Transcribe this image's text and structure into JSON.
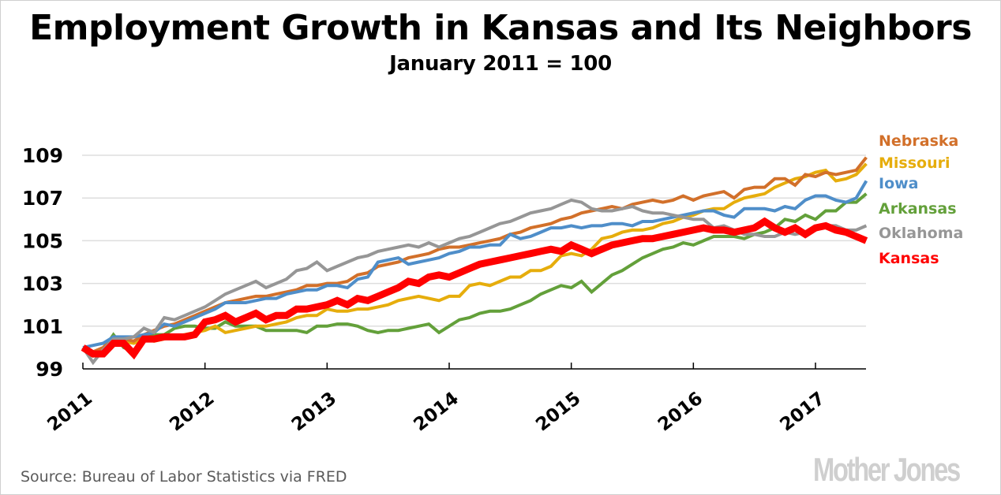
{
  "header": {
    "title": "Employment Growth in Kansas and Its Neighbors",
    "subtitle": "January 2011 = 100"
  },
  "footer": {
    "source": "Source: Bureau of Labor Statistics via FRED",
    "brand": "Mother Jones"
  },
  "chart_data": {
    "type": "line",
    "title": "Employment Growth in Kansas and Its Neighbors",
    "subtitle": "January 2011 = 100",
    "xlabel": "",
    "ylabel": "",
    "x_start": "2011-01",
    "x_frequency": "monthly",
    "x_ticks": [
      "2011",
      "2012",
      "2013",
      "2014",
      "2015",
      "2016",
      "2017"
    ],
    "y_ticks": [
      "99",
      "101",
      "103",
      "105",
      "107",
      "109"
    ],
    "ylim": [
      99,
      109.6
    ],
    "xlim_months": [
      0,
      77
    ],
    "grid": "horizontal",
    "legend": "right, labels at line ends",
    "series": [
      {
        "name": "Nebraska",
        "color": "#d2702a",
        "values": [
          100.0,
          99.8,
          100.0,
          100.5,
          100.4,
          100.3,
          100.6,
          100.8,
          101.0,
          101.1,
          101.3,
          101.5,
          101.7,
          101.9,
          102.1,
          102.2,
          102.3,
          102.4,
          102.4,
          102.5,
          102.6,
          102.7,
          102.9,
          102.9,
          103.0,
          103.0,
          103.1,
          103.4,
          103.5,
          103.8,
          103.9,
          104.0,
          104.2,
          104.3,
          104.4,
          104.6,
          104.7,
          104.7,
          104.8,
          104.9,
          105.0,
          105.1,
          105.3,
          105.4,
          105.6,
          105.7,
          105.8,
          106.0,
          106.1,
          106.3,
          106.4,
          106.5,
          106.6,
          106.5,
          106.7,
          106.8,
          106.9,
          106.8,
          106.9,
          107.1,
          106.9,
          107.1,
          107.2,
          107.3,
          107.0,
          107.4,
          107.5,
          107.5,
          107.9,
          107.9,
          107.6,
          108.1,
          108.0,
          108.2,
          108.1,
          108.2,
          108.3,
          108.9
        ]
      },
      {
        "name": "Missouri",
        "color": "#e6ad0c",
        "values": [
          100.0,
          99.8,
          99.9,
          100.4,
          100.3,
          100.2,
          100.4,
          100.3,
          100.4,
          100.5,
          100.6,
          100.7,
          100.8,
          101.0,
          100.7,
          100.8,
          100.9,
          101.0,
          101.0,
          101.1,
          101.2,
          101.4,
          101.5,
          101.5,
          101.8,
          101.7,
          101.7,
          101.8,
          101.8,
          101.9,
          102.0,
          102.2,
          102.3,
          102.4,
          102.3,
          102.2,
          102.4,
          102.4,
          102.9,
          103.0,
          102.9,
          103.1,
          103.3,
          103.3,
          103.6,
          103.6,
          103.8,
          104.3,
          104.4,
          104.3,
          104.6,
          105.1,
          105.2,
          105.4,
          105.5,
          105.5,
          105.6,
          105.8,
          105.9,
          106.1,
          106.2,
          106.4,
          106.5,
          106.5,
          106.8,
          107.0,
          107.1,
          107.2,
          107.5,
          107.7,
          107.9,
          108.0,
          108.2,
          108.3,
          107.8,
          107.9,
          108.1,
          108.6
        ]
      },
      {
        "name": "Iowa",
        "color": "#4f8ec9",
        "values": [
          100.0,
          100.1,
          100.2,
          100.5,
          100.5,
          100.5,
          100.6,
          100.7,
          101.1,
          101.0,
          101.2,
          101.4,
          101.6,
          101.8,
          102.1,
          102.1,
          102.1,
          102.2,
          102.3,
          102.3,
          102.5,
          102.6,
          102.7,
          102.7,
          102.9,
          102.9,
          102.8,
          103.2,
          103.3,
          104.0,
          104.1,
          104.2,
          103.9,
          104.0,
          104.1,
          104.2,
          104.4,
          104.5,
          104.7,
          104.7,
          104.8,
          104.8,
          105.3,
          105.1,
          105.2,
          105.4,
          105.6,
          105.6,
          105.7,
          105.6,
          105.7,
          105.7,
          105.8,
          105.8,
          105.7,
          105.9,
          105.9,
          106.0,
          106.1,
          106.2,
          106.3,
          106.4,
          106.4,
          106.2,
          106.1,
          106.5,
          106.5,
          106.5,
          106.4,
          106.6,
          106.5,
          106.9,
          107.1,
          107.1,
          106.9,
          106.8,
          107.0,
          107.8
        ]
      },
      {
        "name": "Arkansas",
        "color": "#63a03a",
        "values": [
          100.0,
          99.6,
          99.9,
          100.6,
          100.0,
          99.8,
          100.5,
          100.6,
          100.6,
          100.9,
          101.0,
          101.0,
          100.9,
          100.9,
          101.2,
          101.0,
          101.0,
          101.0,
          100.8,
          100.8,
          100.8,
          100.8,
          100.7,
          101.0,
          101.0,
          101.1,
          101.1,
          101.0,
          100.8,
          100.7,
          100.8,
          100.8,
          100.9,
          101.0,
          101.1,
          100.7,
          101.0,
          101.3,
          101.4,
          101.6,
          101.7,
          101.7,
          101.8,
          102.0,
          102.2,
          102.5,
          102.7,
          102.9,
          102.8,
          103.1,
          102.6,
          103.0,
          103.4,
          103.6,
          103.9,
          104.2,
          104.4,
          104.6,
          104.7,
          104.9,
          104.8,
          105.0,
          105.2,
          105.2,
          105.2,
          105.1,
          105.3,
          105.4,
          105.6,
          106.0,
          105.9,
          106.2,
          106.0,
          106.4,
          106.4,
          106.8,
          106.8,
          107.2
        ]
      },
      {
        "name": "Oklahoma",
        "color": "#969696",
        "values": [
          100.0,
          99.3,
          99.9,
          100.4,
          100.4,
          100.5,
          100.9,
          100.7,
          101.4,
          101.3,
          101.5,
          101.7,
          101.9,
          102.2,
          102.5,
          102.7,
          102.9,
          103.1,
          102.8,
          103.0,
          103.2,
          103.6,
          103.7,
          104.0,
          103.6,
          103.8,
          104.0,
          104.2,
          104.3,
          104.5,
          104.6,
          104.7,
          104.8,
          104.7,
          104.9,
          104.7,
          104.9,
          105.1,
          105.2,
          105.4,
          105.6,
          105.8,
          105.9,
          106.1,
          106.3,
          106.4,
          106.5,
          106.7,
          106.9,
          106.8,
          106.5,
          106.4,
          106.4,
          106.5,
          106.6,
          106.4,
          106.3,
          106.3,
          106.2,
          106.1,
          106.0,
          106.0,
          105.6,
          105.7,
          105.5,
          105.3,
          105.3,
          105.2,
          105.2,
          105.4,
          105.3,
          105.4,
          105.5,
          105.7,
          105.7,
          105.5,
          105.5,
          105.7
        ]
      },
      {
        "name": "Kansas",
        "color": "#ff0000",
        "values": [
          100.0,
          99.7,
          99.7,
          100.2,
          100.2,
          99.7,
          100.4,
          100.4,
          100.5,
          100.5,
          100.5,
          100.6,
          101.2,
          101.3,
          101.5,
          101.2,
          101.4,
          101.6,
          101.3,
          101.5,
          101.5,
          101.8,
          101.8,
          101.9,
          102.0,
          102.2,
          102.0,
          102.3,
          102.2,
          102.4,
          102.6,
          102.8,
          103.1,
          103.0,
          103.3,
          103.4,
          103.3,
          103.5,
          103.7,
          103.9,
          104.0,
          104.1,
          104.2,
          104.3,
          104.4,
          104.5,
          104.6,
          104.5,
          104.8,
          104.6,
          104.4,
          104.6,
          104.8,
          104.9,
          105.0,
          105.1,
          105.1,
          105.2,
          105.3,
          105.4,
          105.5,
          105.6,
          105.5,
          105.5,
          105.4,
          105.5,
          105.6,
          105.9,
          105.6,
          105.4,
          105.6,
          105.3,
          105.6,
          105.7,
          105.5,
          105.4,
          105.2,
          105.0
        ]
      }
    ]
  }
}
